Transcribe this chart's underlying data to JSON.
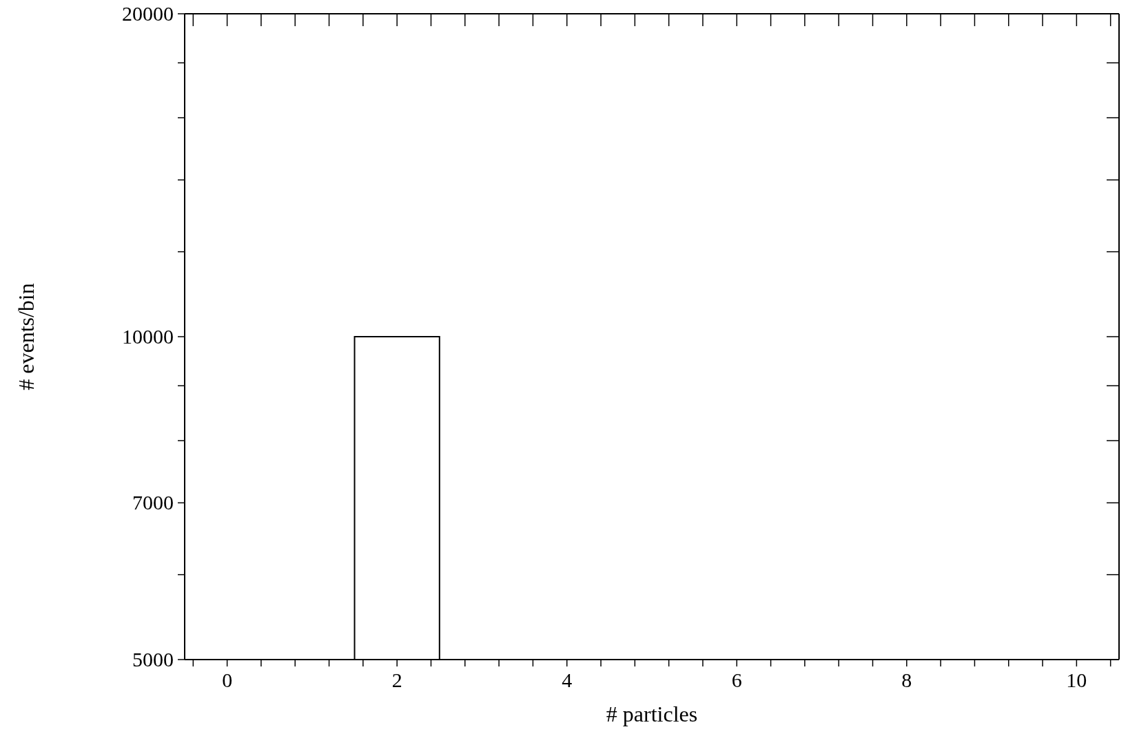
{
  "chart_data": {
    "type": "histogram",
    "xlabel": "# particles",
    "ylabel": "# events/bin",
    "bins": [
      1.5,
      2.5
    ],
    "values": [
      10000
    ],
    "color": "#000000",
    "log": "y",
    "xlim": [
      -0.5,
      10.5
    ],
    "xticks": [
      0,
      {
        "value": 0.4,
        "label": null
      },
      {
        "value": 0.8,
        "label": null
      },
      {
        "value": 1.2,
        "label": null
      },
      {
        "value": 1.6,
        "label": null
      },
      2,
      {
        "value": 2.4,
        "label": null
      },
      {
        "value": 2.8,
        "label": null
      },
      {
        "value": 3.2,
        "label": null
      },
      {
        "value": 3.6,
        "label": null
      },
      4,
      {
        "value": 4.4,
        "label": null
      },
      {
        "value": 4.8,
        "label": null
      },
      {
        "value": 5.2,
        "label": null
      },
      {
        "value": 5.6,
        "label": null
      },
      6,
      {
        "value": 6.4,
        "label": null
      },
      {
        "value": 6.8,
        "label": null
      },
      {
        "value": 7.2,
        "label": null
      },
      {
        "value": 7.6,
        "label": null
      },
      8,
      {
        "value": 8.4,
        "label": null
      },
      {
        "value": 8.8,
        "label": null
      },
      {
        "value": 9.2,
        "label": null
      },
      {
        "value": 9.6,
        "label": null
      },
      10,
      {
        "value": -0.4,
        "label": null
      },
      {
        "value": 10.4,
        "label": null
      }
    ],
    "ylim": [
      5000,
      20000
    ],
    "yticks": [
      5000,
      {
        "value": 6000,
        "label": null
      },
      7000,
      {
        "value": 8000,
        "label": null
      },
      {
        "value": 9000,
        "label": null
      },
      10000,
      {
        "value": 12000,
        "label": null
      },
      {
        "value": 14000,
        "label": null
      },
      {
        "value": 16000,
        "label": null
      },
      {
        "value": 18000,
        "label": null
      },
      20000
    ]
  }
}
